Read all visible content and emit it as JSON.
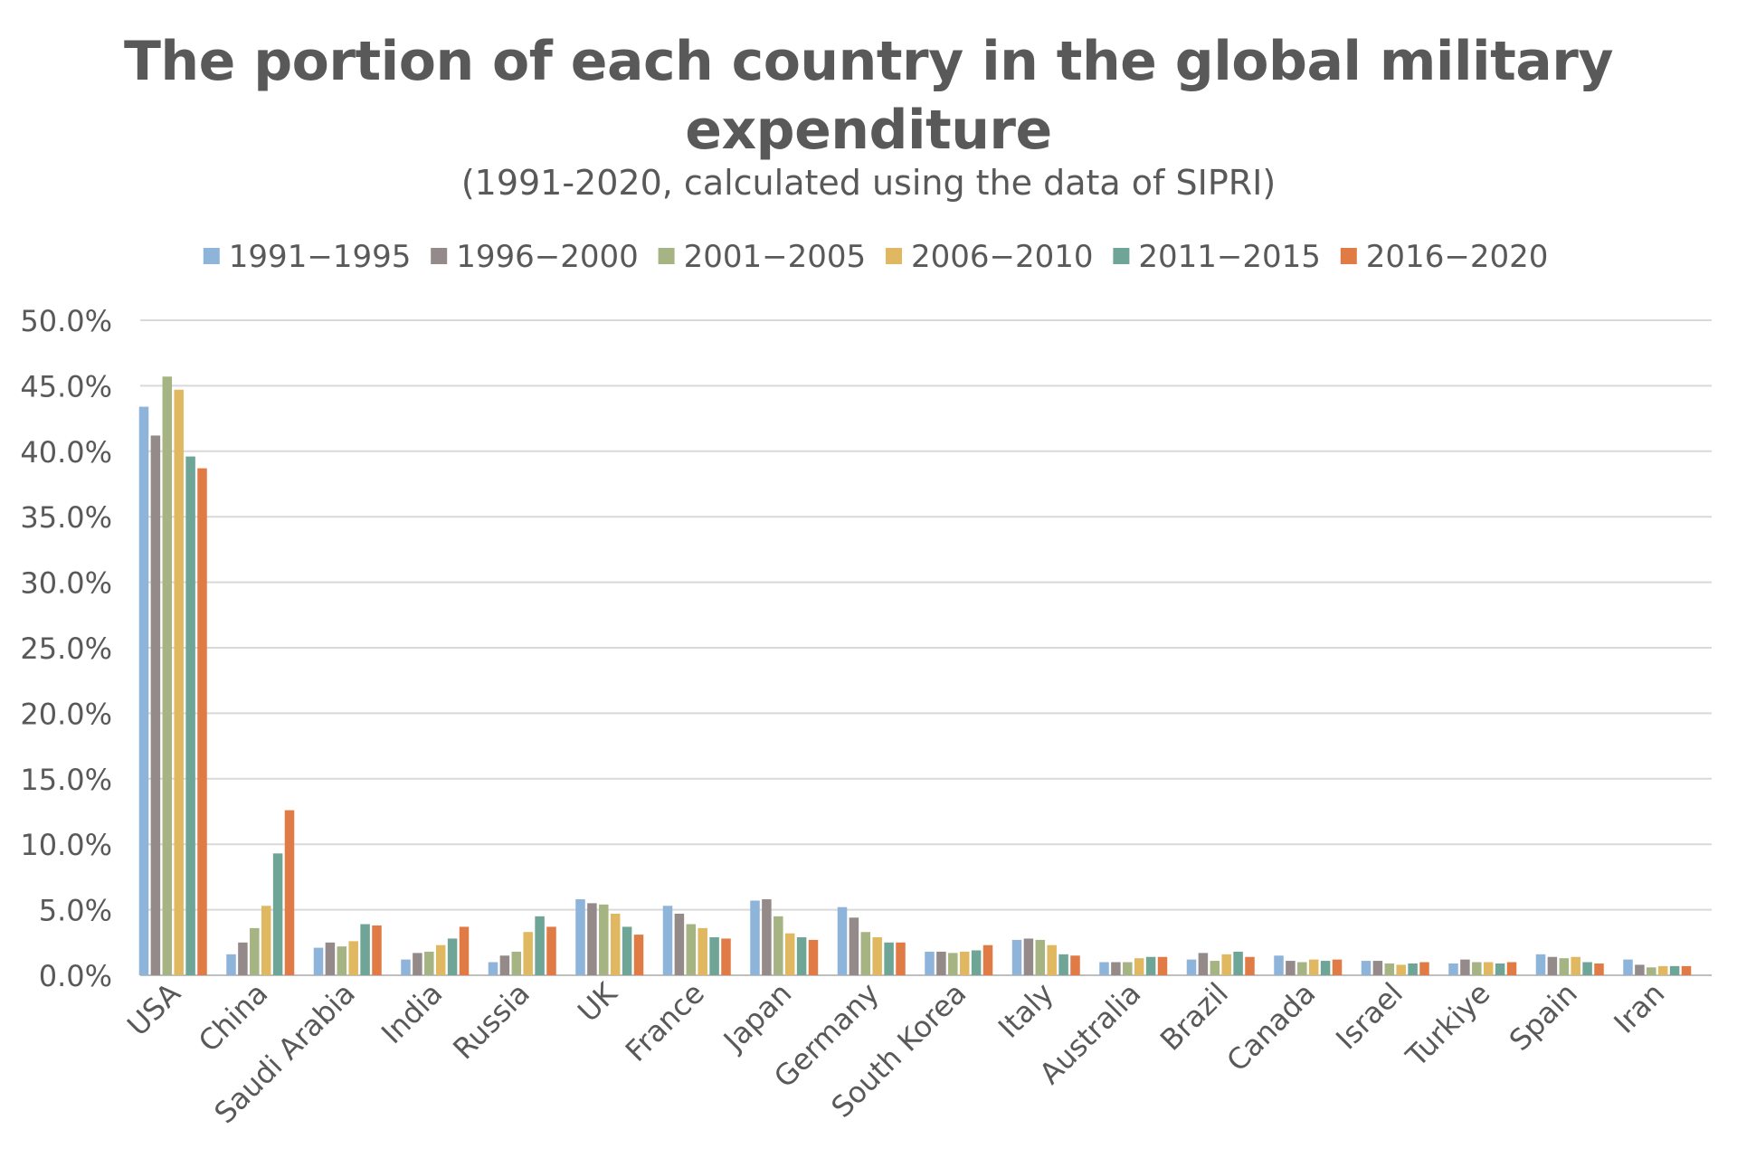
{
  "chart_data": {
    "type": "bar",
    "title": "The portion of each country in the global military expenditure",
    "subtitle": "(1991-2020, calculated using the data of SIPRI)",
    "xlabel": "",
    "ylabel": "",
    "ylim": [
      0,
      50
    ],
    "yticks": [
      "0.0%",
      "5.0%",
      "10.0%",
      "15.0%",
      "20.0%",
      "25.0%",
      "30.0%",
      "35.0%",
      "40.0%",
      "45.0%",
      "50.0%"
    ],
    "grid": true,
    "legend_position": "top",
    "categories": [
      "USA",
      "China",
      "Saudi Arabia",
      "India",
      "Russia",
      "UK",
      "France",
      "Japan",
      "Germany",
      "South Korea",
      "Italy",
      "Australia",
      "Brazil",
      "Canada",
      "Israel",
      "Turkiye",
      "Spain",
      "Iran"
    ],
    "series": [
      {
        "name": "1991−1995",
        "color": "#8fb4d9",
        "values": [
          43.4,
          1.6,
          2.1,
          1.2,
          1.0,
          5.8,
          5.3,
          5.7,
          5.2,
          1.8,
          2.7,
          1.0,
          1.2,
          1.5,
          1.1,
          0.9,
          1.6,
          1.2
        ]
      },
      {
        "name": "1996−2000",
        "color": "#948a8a",
        "values": [
          41.2,
          2.5,
          2.5,
          1.7,
          1.5,
          5.5,
          4.7,
          5.8,
          4.4,
          1.8,
          2.8,
          1.0,
          1.7,
          1.1,
          1.1,
          1.2,
          1.4,
          0.8
        ]
      },
      {
        "name": "2001−2005",
        "color": "#a6b483",
        "values": [
          45.7,
          3.6,
          2.2,
          1.8,
          1.8,
          5.4,
          3.9,
          4.5,
          3.3,
          1.7,
          2.7,
          1.0,
          1.1,
          1.0,
          0.9,
          1.0,
          1.3,
          0.6
        ]
      },
      {
        "name": "2006−2010",
        "color": "#e0b861",
        "values": [
          44.7,
          5.3,
          2.6,
          2.3,
          3.3,
          4.7,
          3.6,
          3.2,
          2.9,
          1.8,
          2.3,
          1.3,
          1.6,
          1.2,
          0.8,
          1.0,
          1.4,
          0.7
        ]
      },
      {
        "name": "2011−2015",
        "color": "#6fa596",
        "values": [
          39.6,
          9.3,
          3.9,
          2.8,
          4.5,
          3.7,
          2.9,
          2.9,
          2.5,
          1.9,
          1.6,
          1.4,
          1.8,
          1.1,
          0.9,
          0.9,
          1.0,
          0.7
        ]
      },
      {
        "name": "2016−2020",
        "color": "#e07b45",
        "values": [
          38.7,
          12.6,
          3.8,
          3.7,
          3.7,
          3.1,
          2.8,
          2.7,
          2.5,
          2.3,
          1.5,
          1.4,
          1.4,
          1.2,
          1.0,
          1.0,
          0.9,
          0.7
        ]
      }
    ]
  }
}
